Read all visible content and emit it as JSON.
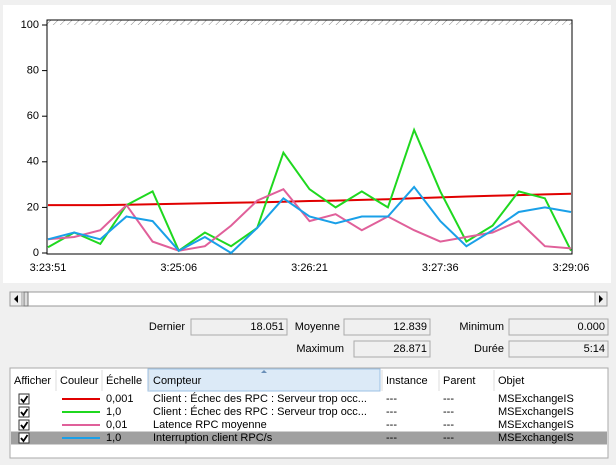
{
  "chart_data": {
    "type": "line",
    "categories": [
      "3:23:51",
      null,
      null,
      null,
      null,
      "3:25:06",
      null,
      null,
      null,
      null,
      "3:26:21",
      null,
      null,
      null,
      null,
      "3:27:36",
      null,
      null,
      null,
      null,
      "3:29:06"
    ],
    "ylim": [
      0,
      100
    ],
    "yticks": [
      0,
      20,
      40,
      60,
      80,
      100
    ],
    "series": [
      {
        "name": "Client : Échec des RPC : Serveur trop occ...",
        "color": "#e00000",
        "values": [
          21,
          21,
          21,
          21.2,
          21.4,
          21.6,
          21.8,
          22,
          22.2,
          22.5,
          22.8,
          23,
          23.3,
          23.6,
          24,
          24.4,
          24.8,
          25.1,
          25.4,
          25.7,
          26
        ]
      },
      {
        "name": "Client : Échec des RPC : Serveur trop occ...",
        "color": "#1fd81f",
        "values": [
          2.5,
          9,
          4,
          21,
          27,
          1,
          9,
          3,
          11,
          44,
          28,
          20,
          27,
          20,
          54,
          27,
          5,
          12,
          27,
          24,
          1
        ]
      },
      {
        "name": "Latence RPC moyenne",
        "color": "#e0609a",
        "values": [
          6,
          7,
          10,
          21,
          5,
          1,
          3,
          12,
          23,
          28,
          14,
          17,
          10,
          16,
          10,
          5,
          7,
          9,
          14,
          3,
          2
        ]
      },
      {
        "name": "Interruption client RPC/s",
        "color": "#1aa0e8",
        "values": [
          6,
          9,
          6,
          16,
          14,
          1,
          7,
          0,
          11,
          24,
          16,
          13,
          16,
          16,
          29,
          14,
          3,
          10,
          18,
          20,
          18
        ]
      }
    ]
  },
  "stats": [
    {
      "label": "Dernier",
      "value": "18.051"
    },
    {
      "label": "Moyenne",
      "value": "12.839"
    },
    {
      "label": "Minimum",
      "value": "0.000"
    },
    {
      "label": "Maximum",
      "value": "28.871"
    },
    {
      "label": "Durée",
      "value": "5:14"
    }
  ],
  "table": {
    "headers": [
      "Afficher",
      "Couleur",
      "Échelle",
      "Compteur",
      "Instance",
      "Parent",
      "Objet"
    ],
    "rows": [
      {
        "scale": "0,001",
        "instance": "---",
        "parent": "---",
        "object": "MSExchangeIS"
      },
      {
        "scale": "1,0",
        "instance": "---",
        "parent": "---",
        "object": "MSExchangeIS"
      },
      {
        "scale": "0,01",
        "instance": "---",
        "parent": "---",
        "object": "MSExchangeIS"
      },
      {
        "scale": "1,0",
        "instance": "---",
        "parent": "---",
        "object": "MSExchangeIS"
      }
    ]
  }
}
